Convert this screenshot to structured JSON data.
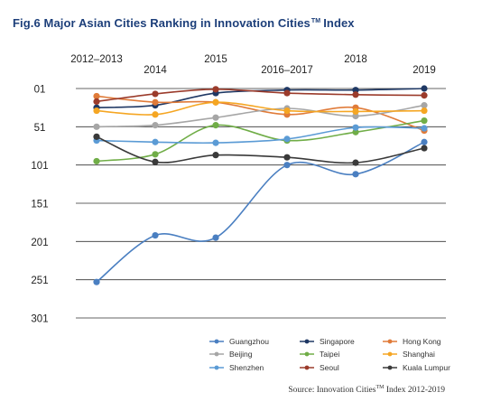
{
  "title": {
    "main": "Fig.6 Major Asian Cities Ranking in Innovation Cities",
    "tm": "TM",
    "tail": "Index"
  },
  "source": {
    "main": "Source: Innovation Cities",
    "tm": "TM",
    "tail": " Index 2012-2019"
  },
  "chart_data": {
    "type": "line",
    "title": "Fig.6 Major Asian Cities Ranking in Innovation Cities™ Index",
    "categories": [
      "2012–2013",
      "2014",
      "2015",
      "2016–2017",
      "2018",
      "2019"
    ],
    "y_tick_labels": [
      "01",
      "51",
      "101",
      "151",
      "201",
      "251",
      "301"
    ],
    "ylim": [
      1,
      301
    ],
    "y_inverted": true,
    "grid": true,
    "legend_position": "bottom-right",
    "series": [
      {
        "name": "Guangzhou",
        "color": "#4a7fc1",
        "values": [
          254,
          193,
          196,
          101,
          113,
          71
        ]
      },
      {
        "name": "Singapore",
        "color": "#1f3864",
        "values": [
          26,
          23,
          7,
          3,
          3,
          1
        ]
      },
      {
        "name": "Hong Kong",
        "color": "#e07b39",
        "values": [
          11,
          19,
          19,
          35,
          26,
          56
        ]
      },
      {
        "name": "Beijing",
        "color": "#a6a6a6",
        "values": [
          51,
          49,
          39,
          27,
          37,
          23
        ]
      },
      {
        "name": "Taipei",
        "color": "#70ad47",
        "values": [
          96,
          87,
          49,
          69,
          58,
          43
        ]
      },
      {
        "name": "Shanghai",
        "color": "#f5a623",
        "values": [
          30,
          35,
          19,
          30,
          31,
          30
        ]
      },
      {
        "name": "Shenzhen",
        "color": "#5b9bd5",
        "values": [
          69,
          71,
          72,
          67,
          52,
          53
        ]
      },
      {
        "name": "Seoul",
        "color": "#9b3b2b",
        "values": [
          18,
          8,
          2,
          7,
          9,
          10
        ]
      },
      {
        "name": "Kuala Lumpur",
        "color": "#3a3a3a",
        "values": [
          64,
          97,
          88,
          91,
          98,
          79
        ]
      }
    ]
  }
}
